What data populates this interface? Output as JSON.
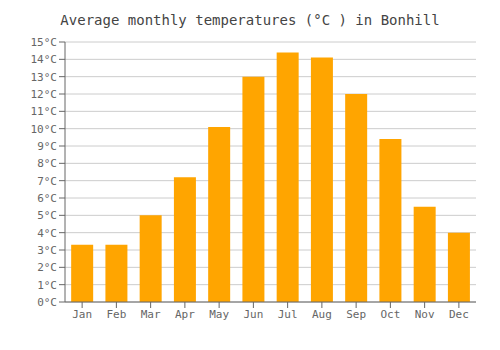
{
  "chart_data": {
    "type": "bar",
    "title": "Average monthly temperatures (°C ) in Bonhill",
    "categories": [
      "Jan",
      "Feb",
      "Mar",
      "Apr",
      "May",
      "Jun",
      "Jul",
      "Aug",
      "Sep",
      "Oct",
      "Nov",
      "Dec"
    ],
    "values": [
      3.3,
      3.3,
      5.0,
      7.2,
      10.1,
      13.0,
      14.4,
      14.1,
      12.0,
      9.4,
      5.5,
      4.0
    ],
    "color": "#FFA500",
    "ylim": [
      0,
      15
    ],
    "yticks": [
      {
        "value": 0,
        "label": "0°C"
      },
      {
        "value": 1,
        "label": "1°C"
      },
      {
        "value": 2,
        "label": "2°C"
      },
      {
        "value": 3,
        "label": "3°C"
      },
      {
        "value": 4,
        "label": "4°C"
      },
      {
        "value": 5,
        "label": "5°C"
      },
      {
        "value": 6,
        "label": "6°C"
      },
      {
        "value": 7,
        "label": "7°C"
      },
      {
        "value": 8,
        "label": "8°C"
      },
      {
        "value": 9,
        "label": "9°C"
      },
      {
        "value": 10,
        "label": "10°C"
      },
      {
        "value": 11,
        "label": "11°C"
      },
      {
        "value": 12,
        "label": "12°C"
      },
      {
        "value": 13,
        "label": "13°C"
      },
      {
        "value": 14,
        "label": "14°C"
      },
      {
        "value": 15,
        "label": "15°C"
      }
    ],
    "grid": true
  }
}
